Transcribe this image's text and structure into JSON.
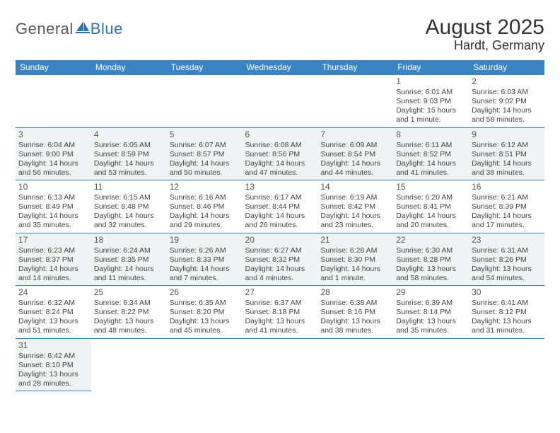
{
  "logo": {
    "general": "General",
    "blue": "Blue"
  },
  "header": {
    "title": "August 2025",
    "location": "Hardt, Germany"
  },
  "colors": {
    "header_bg": "#3b84c4",
    "header_text": "#ffffff",
    "row_shade": "#f1f2f3",
    "row_plain": "#ffffff",
    "grid_line": "#3b84c4",
    "logo_blue": "#2f6fb0",
    "logo_grey": "#5a5a5a"
  },
  "day_labels": [
    "Sunday",
    "Monday",
    "Tuesday",
    "Wednesday",
    "Thursday",
    "Friday",
    "Saturday"
  ],
  "weeks": [
    {
      "shade": false,
      "cells": [
        null,
        null,
        null,
        null,
        null,
        {
          "n": "1",
          "sunrise": "Sunrise: 6:01 AM",
          "sunset": "Sunset: 9:03 PM",
          "daylight": "Daylight: 15 hours and 1 minute."
        },
        {
          "n": "2",
          "sunrise": "Sunrise: 6:03 AM",
          "sunset": "Sunset: 9:02 PM",
          "daylight": "Daylight: 14 hours and 58 minutes."
        }
      ]
    },
    {
      "shade": true,
      "cells": [
        {
          "n": "3",
          "sunrise": "Sunrise: 6:04 AM",
          "sunset": "Sunset: 9:00 PM",
          "daylight": "Daylight: 14 hours and 56 minutes."
        },
        {
          "n": "4",
          "sunrise": "Sunrise: 6:05 AM",
          "sunset": "Sunset: 8:59 PM",
          "daylight": "Daylight: 14 hours and 53 minutes."
        },
        {
          "n": "5",
          "sunrise": "Sunrise: 6:07 AM",
          "sunset": "Sunset: 8:57 PM",
          "daylight": "Daylight: 14 hours and 50 minutes."
        },
        {
          "n": "6",
          "sunrise": "Sunrise: 6:08 AM",
          "sunset": "Sunset: 8:56 PM",
          "daylight": "Daylight: 14 hours and 47 minutes."
        },
        {
          "n": "7",
          "sunrise": "Sunrise: 6:09 AM",
          "sunset": "Sunset: 8:54 PM",
          "daylight": "Daylight: 14 hours and 44 minutes."
        },
        {
          "n": "8",
          "sunrise": "Sunrise: 6:11 AM",
          "sunset": "Sunset: 8:52 PM",
          "daylight": "Daylight: 14 hours and 41 minutes."
        },
        {
          "n": "9",
          "sunrise": "Sunrise: 6:12 AM",
          "sunset": "Sunset: 8:51 PM",
          "daylight": "Daylight: 14 hours and 38 minutes."
        }
      ]
    },
    {
      "shade": false,
      "cells": [
        {
          "n": "10",
          "sunrise": "Sunrise: 6:13 AM",
          "sunset": "Sunset: 8:49 PM",
          "daylight": "Daylight: 14 hours and 35 minutes."
        },
        {
          "n": "11",
          "sunrise": "Sunrise: 6:15 AM",
          "sunset": "Sunset: 8:48 PM",
          "daylight": "Daylight: 14 hours and 32 minutes."
        },
        {
          "n": "12",
          "sunrise": "Sunrise: 6:16 AM",
          "sunset": "Sunset: 8:46 PM",
          "daylight": "Daylight: 14 hours and 29 minutes."
        },
        {
          "n": "13",
          "sunrise": "Sunrise: 6:17 AM",
          "sunset": "Sunset: 8:44 PM",
          "daylight": "Daylight: 14 hours and 26 minutes."
        },
        {
          "n": "14",
          "sunrise": "Sunrise: 6:19 AM",
          "sunset": "Sunset: 8:42 PM",
          "daylight": "Daylight: 14 hours and 23 minutes."
        },
        {
          "n": "15",
          "sunrise": "Sunrise: 6:20 AM",
          "sunset": "Sunset: 8:41 PM",
          "daylight": "Daylight: 14 hours and 20 minutes."
        },
        {
          "n": "16",
          "sunrise": "Sunrise: 6:21 AM",
          "sunset": "Sunset: 8:39 PM",
          "daylight": "Daylight: 14 hours and 17 minutes."
        }
      ]
    },
    {
      "shade": true,
      "cells": [
        {
          "n": "17",
          "sunrise": "Sunrise: 6:23 AM",
          "sunset": "Sunset: 8:37 PM",
          "daylight": "Daylight: 14 hours and 14 minutes."
        },
        {
          "n": "18",
          "sunrise": "Sunrise: 6:24 AM",
          "sunset": "Sunset: 8:35 PM",
          "daylight": "Daylight: 14 hours and 11 minutes."
        },
        {
          "n": "19",
          "sunrise": "Sunrise: 6:26 AM",
          "sunset": "Sunset: 8:33 PM",
          "daylight": "Daylight: 14 hours and 7 minutes."
        },
        {
          "n": "20",
          "sunrise": "Sunrise: 6:27 AM",
          "sunset": "Sunset: 8:32 PM",
          "daylight": "Daylight: 14 hours and 4 minutes."
        },
        {
          "n": "21",
          "sunrise": "Sunrise: 6:28 AM",
          "sunset": "Sunset: 8:30 PM",
          "daylight": "Daylight: 14 hours and 1 minute."
        },
        {
          "n": "22",
          "sunrise": "Sunrise: 6:30 AM",
          "sunset": "Sunset: 8:28 PM",
          "daylight": "Daylight: 13 hours and 58 minutes."
        },
        {
          "n": "23",
          "sunrise": "Sunrise: 6:31 AM",
          "sunset": "Sunset: 8:26 PM",
          "daylight": "Daylight: 13 hours and 54 minutes."
        }
      ]
    },
    {
      "shade": false,
      "cells": [
        {
          "n": "24",
          "sunrise": "Sunrise: 6:32 AM",
          "sunset": "Sunset: 8:24 PM",
          "daylight": "Daylight: 13 hours and 51 minutes."
        },
        {
          "n": "25",
          "sunrise": "Sunrise: 6:34 AM",
          "sunset": "Sunset: 8:22 PM",
          "daylight": "Daylight: 13 hours and 48 minutes."
        },
        {
          "n": "26",
          "sunrise": "Sunrise: 6:35 AM",
          "sunset": "Sunset: 8:20 PM",
          "daylight": "Daylight: 13 hours and 45 minutes."
        },
        {
          "n": "27",
          "sunrise": "Sunrise: 6:37 AM",
          "sunset": "Sunset: 8:18 PM",
          "daylight": "Daylight: 13 hours and 41 minutes."
        },
        {
          "n": "28",
          "sunrise": "Sunrise: 6:38 AM",
          "sunset": "Sunset: 8:16 PM",
          "daylight": "Daylight: 13 hours and 38 minutes."
        },
        {
          "n": "29",
          "sunrise": "Sunrise: 6:39 AM",
          "sunset": "Sunset: 8:14 PM",
          "daylight": "Daylight: 13 hours and 35 minutes."
        },
        {
          "n": "30",
          "sunrise": "Sunrise: 6:41 AM",
          "sunset": "Sunset: 8:12 PM",
          "daylight": "Daylight: 13 hours and 31 minutes."
        }
      ]
    },
    {
      "shade": true,
      "last": true,
      "cells": [
        {
          "n": "31",
          "sunrise": "Sunrise: 6:42 AM",
          "sunset": "Sunset: 8:10 PM",
          "daylight": "Daylight: 13 hours and 28 minutes."
        },
        null,
        null,
        null,
        null,
        null,
        null
      ]
    }
  ]
}
